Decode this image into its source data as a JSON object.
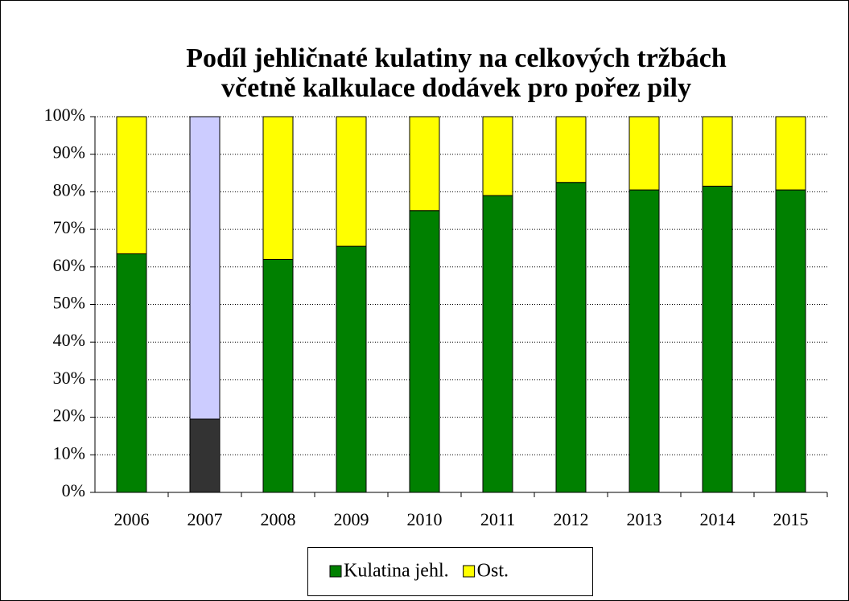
{
  "chart_data": {
    "type": "stacked_bar",
    "title": [
      "Podíl  jehličnaté kulatiny na celkových tržbách",
      "včetně kalkulace dodávek pro pořez pily"
    ],
    "categories": [
      "2006",
      "2007",
      "2008",
      "2009",
      "2010",
      "2011",
      "2012",
      "2013",
      "2014",
      "2015"
    ],
    "series": [
      {
        "name": "Kulatina jehl.",
        "color": "#008000",
        "colors": [
          "#008000",
          "#333333",
          "#008000",
          "#008000",
          "#008000",
          "#008000",
          "#008000",
          "#008000",
          "#008000",
          "#008000"
        ],
        "values": [
          63.5,
          19.5,
          62,
          65.5,
          75,
          79,
          82.5,
          80.5,
          81.5,
          80.5
        ]
      },
      {
        "name": "Ost.",
        "color": "#ffff00",
        "colors": [
          "#ffff00",
          "#ccccff",
          "#ffff00",
          "#ffff00",
          "#ffff00",
          "#ffff00",
          "#ffff00",
          "#ffff00",
          "#ffff00",
          "#ffff00"
        ],
        "values": [
          36.5,
          80.5,
          38,
          34.5,
          25,
          21,
          17.5,
          19.5,
          18.5,
          19.5
        ]
      }
    ],
    "ylim": [
      0,
      100
    ],
    "yticks": [
      {
        "value": 0,
        "label": "0%"
      },
      {
        "value": 10,
        "label": "10%"
      },
      {
        "value": 20,
        "label": "20%"
      },
      {
        "value": 30,
        "label": "30%"
      },
      {
        "value": 40,
        "label": "40%"
      },
      {
        "value": 50,
        "label": "50%"
      },
      {
        "value": 60,
        "label": "60%"
      },
      {
        "value": 70,
        "label": "70%"
      },
      {
        "value": 80,
        "label": "80%"
      },
      {
        "value": 90,
        "label": "90%"
      },
      {
        "value": 100,
        "label": "100%"
      }
    ],
    "grid": true,
    "legend": "bottom"
  }
}
